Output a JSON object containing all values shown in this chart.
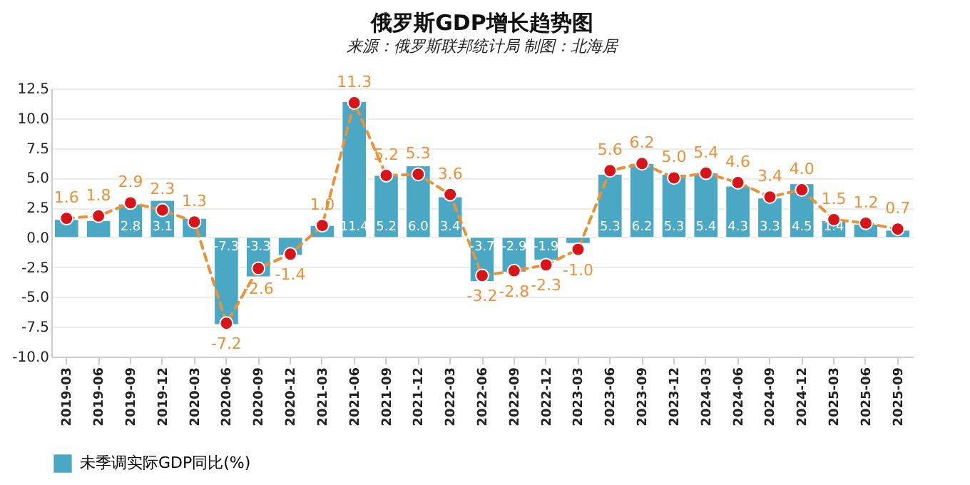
{
  "chart_data": {
    "type": "bar",
    "title": "俄罗斯GDP增长趋势图",
    "subtitle": "来源：俄罗斯联邦统计局 制图：北海居",
    "categories": [
      "2019-03",
      "2019-06",
      "2019-09",
      "2019-12",
      "2020-03",
      "2020-06",
      "2020-09",
      "2020-12",
      "2021-03",
      "2021-06",
      "2021-09",
      "2021-12",
      "2022-03",
      "2022-06",
      "2022-09",
      "2022-12",
      "2023-03",
      "2023-06",
      "2023-09",
      "2023-12",
      "2024-03",
      "2024-06",
      "2024-09",
      "2024-12",
      "2025-03",
      "2025-06",
      "2025-09"
    ],
    "series": [
      {
        "name": "未季调实际GDP同比(%)",
        "color": "#4aa8c4",
        "values": [
          1.5,
          1.4,
          2.8,
          3.1,
          1.6,
          -7.3,
          -3.3,
          -1.5,
          1.0,
          11.4,
          5.2,
          6.0,
          3.4,
          -3.7,
          -2.9,
          -1.9,
          -0.5,
          5.3,
          6.2,
          5.3,
          5.4,
          4.3,
          3.3,
          4.5,
          1.4,
          1.1,
          0.6
        ],
        "value_labels": [
          null,
          null,
          "2.8",
          "3.1",
          null,
          "-7.3",
          "-3.3",
          null,
          null,
          "11.4",
          "5.2",
          "6.0",
          "3.4",
          "-3.7",
          "-2.9",
          "-1.9",
          null,
          "5.3",
          "6.2",
          "5.3",
          "5.4",
          "4.3",
          "3.3",
          "4.5",
          "1.4",
          null,
          null
        ]
      },
      {
        "type": "line",
        "color": "#e8923a",
        "line_style": "dashed",
        "marker": "circle",
        "values": [
          1.6,
          1.8,
          2.9,
          2.3,
          1.3,
          -7.2,
          -2.6,
          -1.4,
          1.0,
          11.3,
          5.2,
          5.3,
          3.6,
          -3.2,
          -2.8,
          -2.3,
          -1.0,
          5.6,
          6.2,
          5.0,
          5.4,
          4.6,
          3.4,
          4.0,
          1.5,
          1.2,
          0.7
        ],
        "value_labels": [
          "1.6",
          "1.8",
          "2.9",
          "2.3",
          "1.3",
          "-7.2",
          "-2.6",
          "-1.4",
          "1.0",
          "11.3",
          "5.2",
          "5.3",
          "3.6",
          "-3.2",
          "-2.8",
          "-2.3",
          "-1.0",
          "5.6",
          "6.2",
          "5.0",
          "5.4",
          "4.6",
          "3.4",
          "4.0",
          "1.5",
          "1.2",
          "0.7"
        ]
      }
    ],
    "ylim": [
      -10,
      12.5
    ],
    "yticks": [
      {
        "value": -10,
        "label": "-10.0"
      },
      {
        "value": -7.5,
        "label": "-7.5"
      },
      {
        "value": -5,
        "label": "-5.0"
      },
      {
        "value": -2.5,
        "label": "-2.5"
      },
      {
        "value": 0,
        "label": "0.0"
      },
      {
        "value": 2.5,
        "label": "2.5"
      },
      {
        "value": 5,
        "label": "5.0"
      },
      {
        "value": 7.5,
        "label": "7.5"
      },
      {
        "value": 10,
        "label": "10.0"
      },
      {
        "value": 12.5,
        "label": "12.5"
      }
    ],
    "grid": "y",
    "legend": "bottom"
  }
}
